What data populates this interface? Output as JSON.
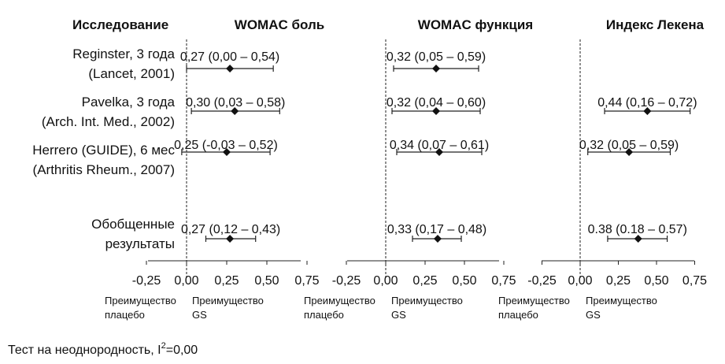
{
  "header": {
    "studies": "Исследование"
  },
  "studies": [
    {
      "line1": "Reginster, 3 года",
      "line2": "(Lancet, 2001)"
    },
    {
      "line1": "Pavelka, 3 года",
      "line2": "(Arch. Int. Med., 2002)"
    },
    {
      "line1": "Herrero (GUIDE), 6 мес",
      "line2": "(Arthritis Rheum., 2007)"
    },
    {
      "line1": "Обобщенные",
      "line2": "результаты"
    }
  ],
  "favors": {
    "left_line1": "Преимущество",
    "left_line2": "плацебо",
    "right_line1": "Преимущество",
    "right_line2": "GS"
  },
  "footer": {
    "heterogeneity_prefix": "Тест на неоднородность, I",
    "heterogeneity_sup": "2",
    "heterogeneity_suffix": "=0,00"
  },
  "chart_data": [
    {
      "type": "forest",
      "title": "WOMAC боль",
      "xlim": [
        -0.25,
        0.75
      ],
      "ticks": [
        "-0,25",
        "0,00",
        "0,25",
        "0,50",
        "0,75"
      ],
      "rows": [
        {
          "study": "Reginster",
          "est": 0.27,
          "lo": 0.0,
          "hi": 0.54,
          "label": "0,27 (0,00 – 0,54)"
        },
        {
          "study": "Pavelka",
          "est": 0.3,
          "lo": 0.03,
          "hi": 0.58,
          "label": "0,30 (0,03 – 0,58)"
        },
        {
          "study": "Herrero",
          "est": 0.25,
          "lo": -0.03,
          "hi": 0.52,
          "label": "0,25 (-0,03 – 0,52)"
        },
        {
          "study": "Pooled",
          "est": 0.27,
          "lo": 0.12,
          "hi": 0.43,
          "label": "0,27 (0,12 – 0,43)"
        }
      ]
    },
    {
      "type": "forest",
      "title": "WOMAC функция",
      "xlim": [
        -0.25,
        0.75
      ],
      "ticks": [
        "-0,25",
        "0,00",
        "0,25",
        "0,50",
        "0,75"
      ],
      "rows": [
        {
          "study": "Reginster",
          "est": 0.32,
          "lo": 0.05,
          "hi": 0.59,
          "label": "0,32 (0,05 – 0,59)"
        },
        {
          "study": "Pavelka",
          "est": 0.32,
          "lo": 0.04,
          "hi": 0.6,
          "label": "0,32 (0,04 – 0,60)"
        },
        {
          "study": "Herrero",
          "est": 0.34,
          "lo": 0.07,
          "hi": 0.61,
          "label": "0,34 (0,07 – 0,61)"
        },
        {
          "study": "Pooled",
          "est": 0.33,
          "lo": 0.17,
          "hi": 0.48,
          "label": "0,33 (0,17 – 0,48)"
        }
      ]
    },
    {
      "type": "forest",
      "title": "Индекс Лекена",
      "xlim": [
        -0.25,
        0.75
      ],
      "ticks": [
        "-0,25",
        "0,00",
        "0,25",
        "0,50",
        "0,75"
      ],
      "rows": [
        {
          "study": "Reginster",
          "est": null,
          "lo": null,
          "hi": null,
          "label": ""
        },
        {
          "study": "Pavelka",
          "est": 0.44,
          "lo": 0.16,
          "hi": 0.72,
          "label": "0,44 (0,16 – 0,72)"
        },
        {
          "study": "Herrero",
          "est": 0.32,
          "lo": 0.05,
          "hi": 0.59,
          "label": "0,32 (0,05 – 0,59)"
        },
        {
          "study": "Pooled",
          "est": 0.38,
          "lo": 0.18,
          "hi": 0.57,
          "label": "0.38 (0.18 – 0.57)"
        }
      ]
    }
  ]
}
